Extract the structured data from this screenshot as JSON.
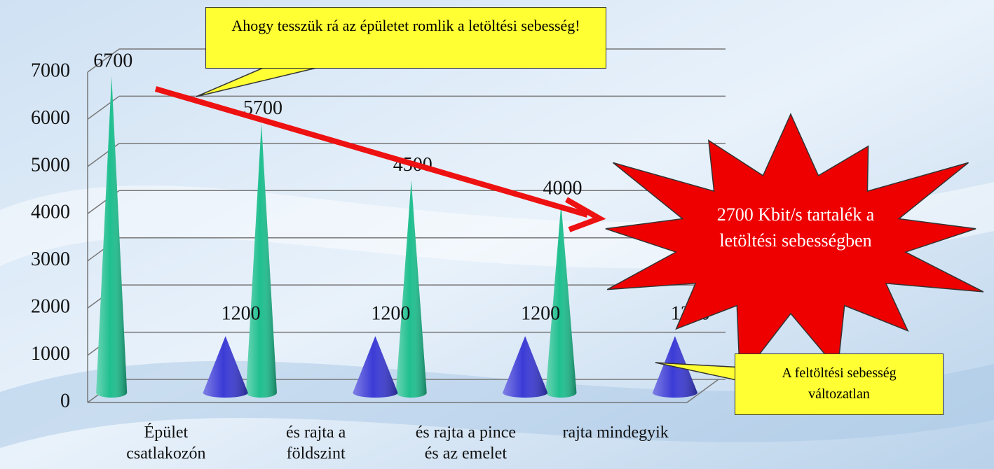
{
  "chart_data": {
    "type": "cone",
    "categories": [
      "Épület\ncsatlakozón",
      "és rajta a\nföldszint",
      "és rajta a pince\nés az emelet",
      "rajta mindegyik"
    ],
    "series": [
      {
        "color": "#1fbf8f",
        "values": [
          6700,
          5700,
          4500,
          4000
        ]
      },
      {
        "color": "#3b3bd6",
        "values": [
          1200,
          1200,
          1200,
          1200
        ]
      }
    ],
    "ylim": [
      0,
      7000
    ],
    "yticks": [
      0,
      1000,
      2000,
      3000,
      4000,
      5000,
      6000,
      7000
    ],
    "grid": true,
    "annotations": [
      "Ahogy tesszük rá az épületet romlik  a letöltési sebesség!",
      "2700 Kbit/s tartalék a letöltési sebességben",
      "A  feltöltési sebesség változatlan"
    ]
  }
}
